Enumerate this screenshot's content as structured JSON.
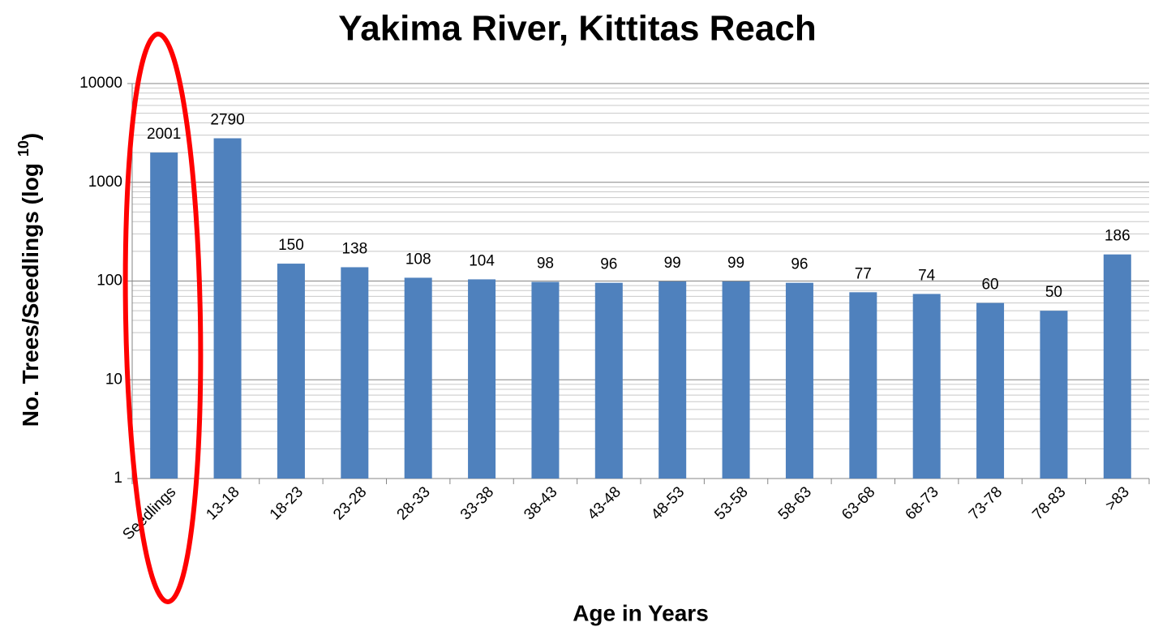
{
  "chart_data": {
    "type": "bar",
    "title": "Yakima River, Kittitas Reach",
    "xlabel": "Age in Years",
    "ylabel": {
      "text": "No. Trees/Seedlings (log",
      "superscript": "10",
      "close": ")"
    },
    "categories": [
      "Seedlings",
      "13-18",
      "18-23",
      "23-28",
      "28-33",
      "33-38",
      "38-43",
      "43-48",
      "48-53",
      "53-58",
      "58-63",
      "63-68",
      "68-73",
      "73-78",
      "78-83",
      ">83"
    ],
    "values": [
      2001,
      2790,
      150,
      138,
      108,
      104,
      98,
      96,
      99,
      99,
      96,
      77,
      74,
      60,
      50,
      186
    ],
    "color": "#4f81bd",
    "log_scale": true,
    "ylim": [
      1,
      10000
    ],
    "yticks": [
      1,
      10,
      100,
      1000,
      10000
    ],
    "grid": "major-minor"
  }
}
